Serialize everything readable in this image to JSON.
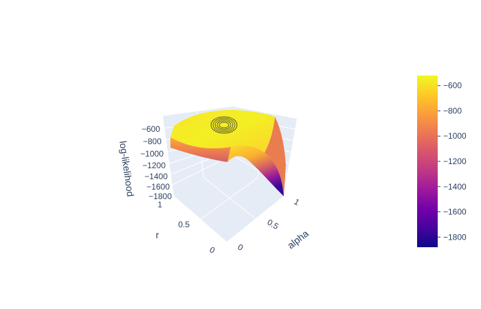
{
  "chart_data": {
    "type": "surface",
    "title": "",
    "colorscale": "plasma",
    "axes": {
      "x": {
        "title": "alpha",
        "range": [
          0,
          1
        ],
        "ticks": [
          "0",
          "0.5",
          "1"
        ]
      },
      "y": {
        "title": "r",
        "range": [
          0,
          1
        ],
        "ticks": [
          "0",
          "0.5",
          "1"
        ]
      },
      "z": {
        "title": "log-likelihood",
        "range": [
          -1800,
          -600
        ],
        "ticks": [
          "−600",
          "−800",
          "−1000",
          "−1200",
          "−1400",
          "−1600",
          "−1800"
        ]
      }
    },
    "colorbar": {
      "range": [
        -1880,
        -520
      ],
      "ticks": [
        "−600",
        "−800",
        "−1000",
        "−1200",
        "−1400",
        "−1600",
        "−1800"
      ],
      "tick_values": [
        -600,
        -800,
        -1000,
        -1200,
        -1400,
        -1600,
        -1800
      ]
    },
    "contours": "concentric ellipses projected on surface top near maximum"
  }
}
